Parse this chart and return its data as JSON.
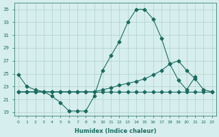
{
  "xlabel": "Humidex (Indice chaleur)",
  "ylabel": "",
  "background_color": "#d6eeed",
  "grid_color": "#b0d0cc",
  "line_color": "#1a6b60",
  "xlim": [
    -0.5,
    23.5
  ],
  "ylim": [
    18.5,
    36
  ],
  "yticks": [
    19,
    21,
    23,
    25,
    27,
    29,
    31,
    33,
    35
  ],
  "xticks": [
    0,
    1,
    2,
    3,
    4,
    5,
    6,
    7,
    8,
    9,
    10,
    11,
    12,
    13,
    14,
    15,
    16,
    17,
    18,
    19,
    20,
    21,
    22,
    23
  ],
  "line1_y": [
    24.8,
    23.0,
    22.5,
    22.2,
    21.5,
    20.5,
    19.2,
    19.2,
    19.2,
    21.5,
    25.5,
    27.8,
    30.0,
    33.0,
    35.0,
    35.0,
    33.5,
    30.5,
    26.5,
    24.0,
    22.5,
    24.5,
    null,
    null
  ],
  "line2_y": [
    22.2,
    22.2,
    22.2,
    22.2,
    22.2,
    22.2,
    22.2,
    22.2,
    22.2,
    22.2,
    22.5,
    22.8,
    23.2,
    23.5,
    23.8,
    24.2,
    24.8,
    25.5,
    26.5,
    27.0,
    25.5,
    24.2,
    22.5,
    22.2
  ],
  "line3_y": [
    22.2,
    22.2,
    22.2,
    22.2,
    22.2,
    22.2,
    22.2,
    22.2,
    22.2,
    22.2,
    22.2,
    22.2,
    22.2,
    22.2,
    22.2,
    22.2,
    22.2,
    22.2,
    22.2,
    22.2,
    22.2,
    22.2,
    22.2,
    22.2
  ]
}
